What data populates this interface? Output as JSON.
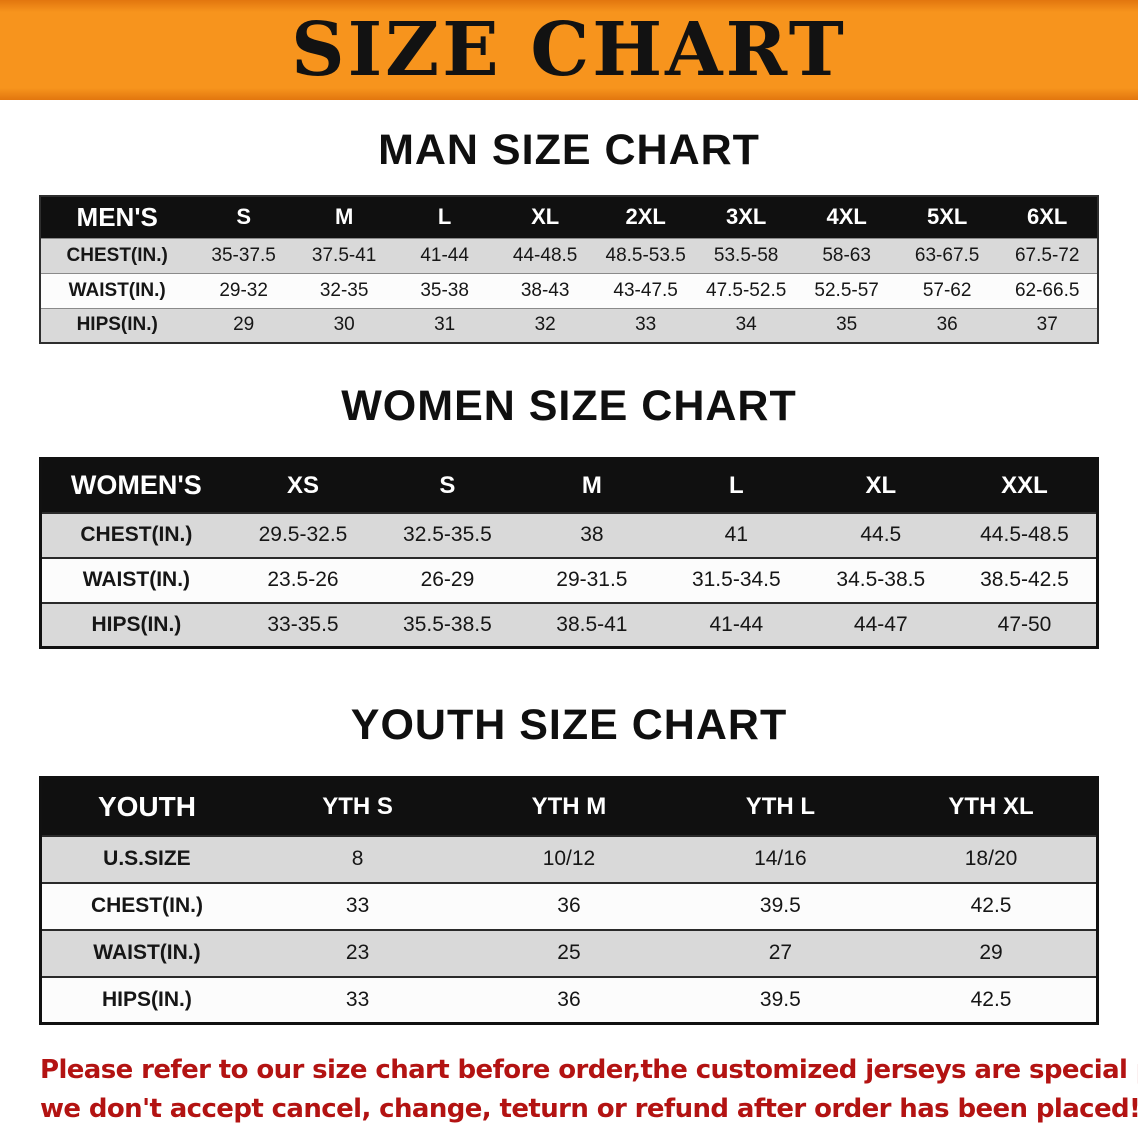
{
  "banner": {
    "title": "SIZE CHART",
    "bg_color": "#f7941d",
    "text_color": "#121212"
  },
  "sections": {
    "men": {
      "heading": "MAN SIZE CHART",
      "table": {
        "header": [
          "MEN'S",
          "S",
          "M",
          "L",
          "XL",
          "2XL",
          "3XL",
          "4XL",
          "5XL",
          "6XL"
        ],
        "rows": [
          [
            "CHEST(IN.)",
            "35-37.5",
            "37.5-41",
            "41-44",
            "44-48.5",
            "48.5-53.5",
            "53.5-58",
            "58-63",
            "63-67.5",
            "67.5-72"
          ],
          [
            "WAIST(IN.)",
            "29-32",
            "32-35",
            "35-38",
            "38-43",
            "43-47.5",
            "47.5-52.5",
            "52.5-57",
            "57-62",
            "62-66.5"
          ],
          [
            "HIPS(IN.)",
            "29",
            "30",
            "31",
            "32",
            "33",
            "34",
            "35",
            "36",
            "37"
          ]
        ]
      }
    },
    "women": {
      "heading": "WOMEN SIZE CHART",
      "table": {
        "header": [
          "WOMEN'S",
          "XS",
          "S",
          "M",
          "L",
          "XL",
          "XXL"
        ],
        "rows": [
          [
            "CHEST(IN.)",
            "29.5-32.5",
            "32.5-35.5",
            "38",
            "41",
            "44.5",
            "44.5-48.5"
          ],
          [
            "WAIST(IN.)",
            "23.5-26",
            "26-29",
            "29-31.5",
            "31.5-34.5",
            "34.5-38.5",
            "38.5-42.5"
          ],
          [
            "HIPS(IN.)",
            "33-35.5",
            "35.5-38.5",
            "38.5-41",
            "41-44",
            "44-47",
            "47-50"
          ]
        ]
      }
    },
    "youth": {
      "heading": "YOUTH SIZE CHART",
      "table": {
        "header": [
          "YOUTH",
          "YTH S",
          "YTH M",
          "YTH L",
          "YTH XL"
        ],
        "rows": [
          [
            "U.S.SIZE",
            "8",
            "10/12",
            "14/16",
            "18/20"
          ],
          [
            "CHEST(IN.)",
            "33",
            "36",
            "39.5",
            "42.5"
          ],
          [
            "WAIST(IN.)",
            "23",
            "25",
            "27",
            "29"
          ],
          [
            "HIPS(IN.)",
            "33",
            "36",
            "39.5",
            "42.5"
          ]
        ]
      }
    }
  },
  "note": {
    "line1": "Please refer to our size chart before order,the customized jerseys are special products,",
    "line2": "we don't accept cancel, change, teturn or refund after order has been placed!",
    "color": "#b31312"
  }
}
